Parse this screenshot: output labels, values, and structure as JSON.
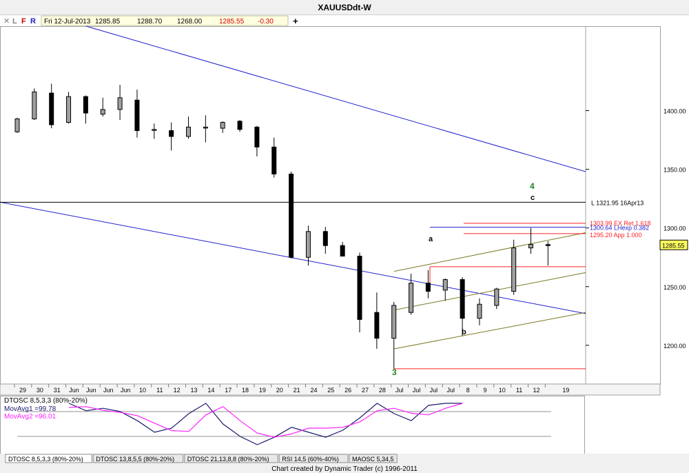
{
  "window": {
    "title": "XAUUSDdt-W"
  },
  "toolbar": {
    "buttons": [
      {
        "key": "close",
        "label": "✕",
        "color": "#808080"
      },
      {
        "key": "L",
        "label": "L",
        "color": "#808080"
      },
      {
        "key": "F",
        "label": "F",
        "color": "#c00000"
      },
      {
        "key": "R",
        "label": "R",
        "color": "#2020c0"
      }
    ],
    "date": "Fri 12-Jul-2013",
    "open": "1285.85",
    "high": "1288.70",
    "low": "1268.00",
    "close": "1285.55",
    "change": "-0.30",
    "add_label": "+"
  },
  "colors": {
    "up_candle": "#a0a0a0",
    "down_candle": "#000000",
    "channel": "#2020d0",
    "fib": "#ff2020",
    "fib_blue": "#2020d0",
    "olive": "#7a7a20",
    "wave_green": "#208020",
    "osc1": "#1a1a6e",
    "osc2": "#ff20ff",
    "price_badge": "#ffff60"
  },
  "chart_data": [
    {
      "type": "candlestick",
      "title": "XAUUSDdt-W",
      "ylim": [
        1167,
        1472
      ],
      "y_ticks": [
        1200,
        1250,
        1300,
        1350,
        1400
      ],
      "y_tick_labels": [
        "1200.00",
        "1250.00",
        "1300.00",
        "1350.00",
        "1400.00"
      ],
      "x_tick_labels": [
        "29",
        "30",
        "31",
        "Jun",
        "Jun",
        "Jun",
        "Jun",
        "10",
        "11",
        "12",
        "13",
        "14",
        "17",
        "18",
        "19",
        "20",
        "21",
        "24",
        "25",
        "26",
        "27",
        "28",
        "Jul",
        "Jul",
        "Jul",
        "Jul",
        "8",
        "9",
        "10",
        "11",
        "12",
        "19"
      ],
      "candles": [
        {
          "o": 1382,
          "h": 1394,
          "l": 1381,
          "c": 1393
        },
        {
          "o": 1393,
          "h": 1419,
          "l": 1392,
          "c": 1416
        },
        {
          "o": 1415,
          "h": 1423,
          "l": 1385,
          "c": 1388
        },
        {
          "o": 1390,
          "h": 1416,
          "l": 1389,
          "c": 1412
        },
        {
          "o": 1412,
          "h": 1413,
          "l": 1389,
          "c": 1398
        },
        {
          "o": 1397,
          "h": 1411,
          "l": 1395,
          "c": 1401
        },
        {
          "o": 1401,
          "h": 1422,
          "l": 1392,
          "c": 1411
        },
        {
          "o": 1409,
          "h": 1418,
          "l": 1377,
          "c": 1383
        },
        {
          "o": 1384,
          "h": 1389,
          "l": 1376,
          "c": 1384
        },
        {
          "o": 1383,
          "h": 1390,
          "l": 1366,
          "c": 1378
        },
        {
          "o": 1378,
          "h": 1395,
          "l": 1376,
          "c": 1386
        },
        {
          "o": 1386,
          "h": 1396,
          "l": 1373,
          "c": 1386
        },
        {
          "o": 1385,
          "h": 1391,
          "l": 1381,
          "c": 1390
        },
        {
          "o": 1391,
          "h": 1392,
          "l": 1382,
          "c": 1384
        },
        {
          "o": 1386,
          "h": 1387,
          "l": 1361,
          "c": 1369
        },
        {
          "o": 1369,
          "h": 1377,
          "l": 1343,
          "c": 1346
        },
        {
          "o": 1346,
          "h": 1348,
          "l": 1274,
          "c": 1275
        },
        {
          "o": 1275,
          "h": 1302,
          "l": 1268,
          "c": 1297
        },
        {
          "o": 1297,
          "h": 1301,
          "l": 1278,
          "c": 1285
        },
        {
          "o": 1285,
          "h": 1288,
          "l": 1276,
          "c": 1276
        },
        {
          "o": 1276,
          "h": 1279,
          "l": 1211,
          "c": 1222
        },
        {
          "o": 1228,
          "h": 1245,
          "l": 1197,
          "c": 1206
        },
        {
          "o": 1206,
          "h": 1237,
          "l": 1180,
          "c": 1234
        },
        {
          "o": 1228,
          "h": 1261,
          "l": 1226,
          "c": 1253
        },
        {
          "o": 1253,
          "h": 1264,
          "l": 1240,
          "c": 1246
        },
        {
          "o": 1247,
          "h": 1257,
          "l": 1238,
          "c": 1256
        },
        {
          "o": 1256,
          "h": 1258,
          "l": 1208,
          "c": 1223
        },
        {
          "o": 1223,
          "h": 1240,
          "l": 1217,
          "c": 1235
        },
        {
          "o": 1234,
          "h": 1249,
          "l": 1231,
          "c": 1248
        },
        {
          "o": 1246,
          "h": 1290,
          "l": 1243,
          "c": 1283
        },
        {
          "o": 1283,
          "h": 1300,
          "l": 1278,
          "c": 1286
        },
        {
          "o": 1285.85,
          "h": 1288.7,
          "l": 1268.0,
          "c": 1285.55
        }
      ],
      "horizontal_levels": [
        {
          "value": 1321.95,
          "label": "L 1321.95 16Apr13",
          "color": "#000000"
        },
        {
          "value": 1303.99,
          "label": "1303.99 EX Ret 1.618",
          "color": "#ff2020"
        },
        {
          "value": 1300.64,
          "label": "1300.64 LHexp 0.382",
          "color": "#2020d0"
        },
        {
          "value": 1295.2,
          "label": "1295.20 App 1.000",
          "color": "#ff2020"
        },
        {
          "value": 1285.55,
          "label": "1285.55",
          "color": "#000000"
        }
      ],
      "wave_labels": [
        "3",
        "4",
        "a",
        "b",
        "c"
      ]
    },
    {
      "type": "line",
      "title": "DTOSC 8,5,3,3 (80%-20%)",
      "ylim": [
        -5,
        105
      ],
      "guides": [
        80,
        20
      ],
      "series": [
        {
          "name": "MovAvg1",
          "current": "99.78",
          "values": [
            100,
            82,
            88,
            80,
            58,
            30,
            40,
            75,
            100,
            50,
            20,
            0,
            18,
            42,
            30,
            18,
            35,
            65,
            100,
            75,
            58,
            95,
            100,
            100
          ]
        },
        {
          "name": "MovAvg2",
          "current": "96.01",
          "values": [
            90,
            92,
            83,
            78,
            70,
            52,
            34,
            32,
            72,
            92,
            58,
            28,
            18,
            26,
            40,
            40,
            42,
            55,
            82,
            88,
            76,
            72,
            88,
            100
          ]
        }
      ]
    }
  ],
  "tabs": [
    {
      "label": "DTOSC 8,5,3,3 (80%-20%)",
      "active": true
    },
    {
      "label": "DTOSC 13,8,5,5 (80%-20%)",
      "active": false
    },
    {
      "label": "DTOSC 21,13,8,8 (80%-20%)",
      "active": false
    },
    {
      "label": "RSI 14,5 (60%-40%)",
      "active": false
    },
    {
      "label": "MAOSC 5,34,5",
      "active": false
    }
  ],
  "footer": {
    "credit": "Chart created by Dynamic Trader  (c) 1996-2011"
  }
}
